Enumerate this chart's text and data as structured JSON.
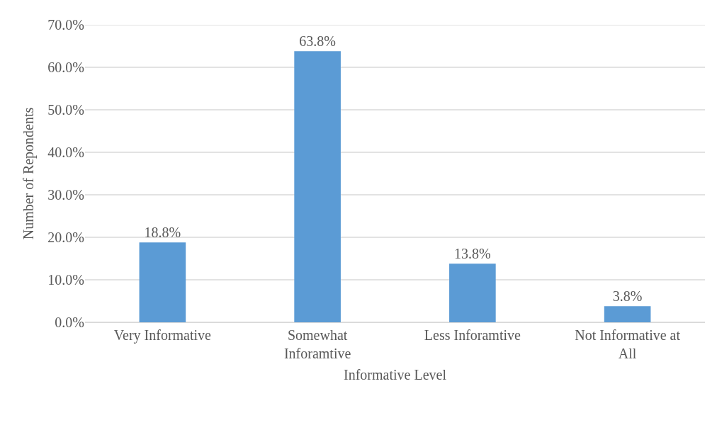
{
  "chart_data": {
    "type": "bar",
    "xlabel": "Informative Level",
    "ylabel": "Number of Repondents",
    "categories": [
      "Very Informative",
      "Somewhat Inforamtive",
      "Less Inforamtive",
      "Not Informative at All"
    ],
    "values": [
      18.8,
      63.8,
      13.8,
      3.8
    ],
    "value_labels": [
      "18.8%",
      "63.8%",
      "13.8%",
      "3.8%"
    ],
    "color": "#5b9bd5",
    "ylim": [
      0,
      70
    ],
    "yticks": [
      {
        "value": 0,
        "label": "0.0%"
      },
      {
        "value": 10,
        "label": "10.0%"
      },
      {
        "value": 20,
        "label": "20.0%"
      },
      {
        "value": 30,
        "label": "30.0%"
      },
      {
        "value": 40,
        "label": "40.0%"
      },
      {
        "value": 50,
        "label": "50.0%"
      },
      {
        "value": 60,
        "label": "60.0%"
      },
      {
        "value": 70,
        "label": "70.0%"
      }
    ],
    "grid": "y"
  }
}
